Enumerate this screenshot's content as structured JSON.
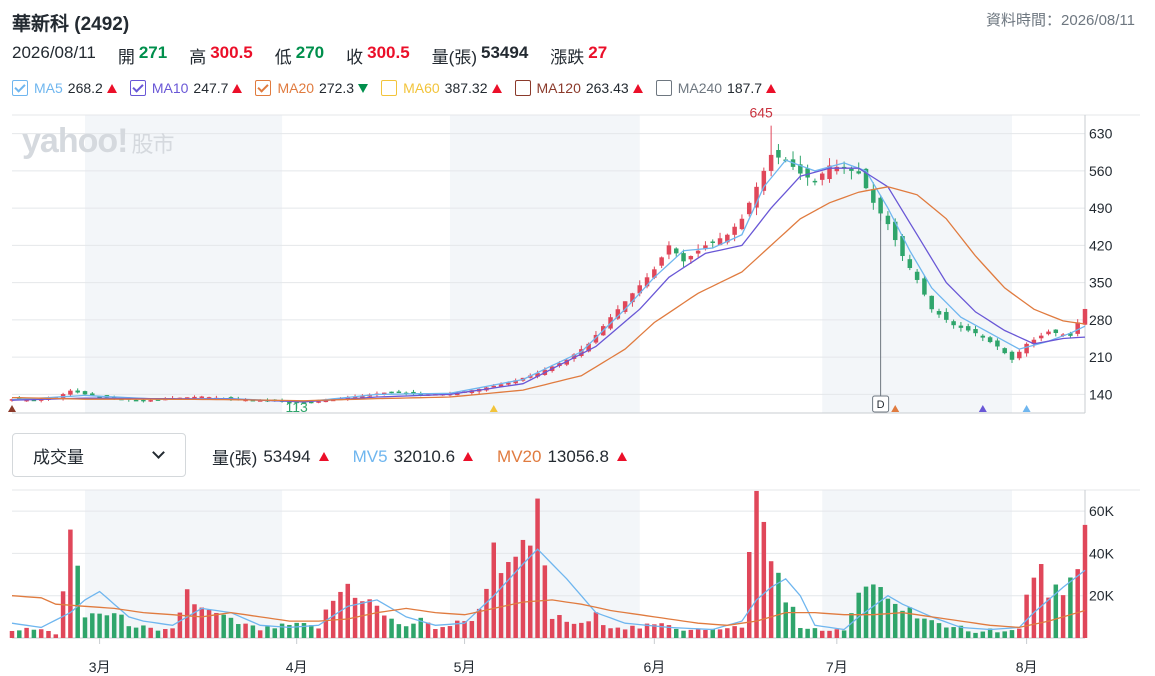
{
  "header": {
    "title": "華新科 (2492)",
    "data_time": "資料時間：2026/08/11"
  },
  "quote": {
    "date": "2026/08/11",
    "open_label": "開",
    "open": "271",
    "high_label": "高",
    "high": "300.5",
    "low_label": "低",
    "low": "270",
    "close_label": "收",
    "close": "300.5",
    "volume_label": "量(張)",
    "volume": "53494",
    "change_label": "漲跌",
    "change": "27"
  },
  "ma_legend": [
    {
      "name": "MA5",
      "value": "268.2",
      "dir": "up",
      "color": "#6fb6ef",
      "checked": true
    },
    {
      "name": "MA10",
      "value": "247.7",
      "dir": "up",
      "color": "#6957d6",
      "checked": true
    },
    {
      "name": "MA20",
      "value": "272.3",
      "dir": "down",
      "color": "#e07b3f",
      "checked": true
    },
    {
      "name": "MA60",
      "value": "387.32",
      "dir": "up",
      "color": "#f2c43b",
      "checked": false
    },
    {
      "name": "MA120",
      "value": "263.43",
      "dir": "up",
      "color": "#8b3a2b",
      "checked": false
    },
    {
      "name": "MA240",
      "value": "187.7",
      "dir": "up",
      "color": "#6e7780",
      "checked": false
    }
  ],
  "watermark": {
    "brand": "yahoo!",
    "sub": "股市"
  },
  "volume_panel": {
    "select_value": "成交量",
    "vol_label": "量(張)",
    "vol_value": "53494",
    "mv5_label": "MV5",
    "mv5_value": "32010.6",
    "mv20_label": "MV20",
    "mv20_value": "13056.8"
  },
  "colors": {
    "up": "#eb0f29",
    "down": "#008f4c",
    "candle_up": "#e0475a",
    "candle_down": "#2fa56b",
    "shade": "#f3f6f9"
  },
  "chart_data": {
    "type": "candlestick",
    "price_axis": {
      "ticks": [
        140,
        210,
        280,
        350,
        420,
        490,
        560,
        630
      ],
      "range": [
        105,
        665
      ]
    },
    "volume_axis": {
      "ticks": [
        20000,
        40000,
        60000
      ],
      "tick_labels": [
        "20K",
        "40K",
        "60K"
      ],
      "range": [
        0,
        70000
      ]
    },
    "month_labels": [
      "3月",
      "4月",
      "5月",
      "6月",
      "7月",
      "8月"
    ],
    "annotations": {
      "max_label": "645",
      "min_label": "113",
      "event_marker": "D"
    },
    "x_range": [
      0,
      147
    ],
    "month_day_index": [
      12,
      39,
      62,
      88,
      113,
      139
    ],
    "shaded_bands": [
      [
        10,
        37
      ],
      [
        60,
        86
      ],
      [
        111,
        137
      ]
    ],
    "key_points": {
      "high": {
        "i": 104,
        "v": 645
      },
      "low": {
        "i": 39,
        "v": 113
      },
      "event": {
        "i": 119
      }
    },
    "close_path": [
      [
        0,
        131
      ],
      [
        3,
        129
      ],
      [
        6,
        134
      ],
      [
        8,
        147
      ],
      [
        10,
        140
      ],
      [
        14,
        132
      ],
      [
        18,
        128
      ],
      [
        22,
        133
      ],
      [
        26,
        136
      ],
      [
        30,
        131
      ],
      [
        34,
        129
      ],
      [
        38,
        125
      ],
      [
        40,
        124
      ],
      [
        44,
        130
      ],
      [
        48,
        138
      ],
      [
        52,
        145
      ],
      [
        56,
        140
      ],
      [
        60,
        141
      ],
      [
        64,
        150
      ],
      [
        68,
        162
      ],
      [
        72,
        180
      ],
      [
        76,
        205
      ],
      [
        79,
        235
      ],
      [
        82,
        285
      ],
      [
        85,
        330
      ],
      [
        88,
        375
      ],
      [
        90,
        420
      ],
      [
        92,
        390
      ],
      [
        95,
        420
      ],
      [
        98,
        440
      ],
      [
        100,
        470
      ],
      [
        102,
        530
      ],
      [
        104,
        590
      ],
      [
        106,
        580
      ],
      [
        108,
        555
      ],
      [
        110,
        540
      ],
      [
        112,
        570
      ],
      [
        114,
        565
      ],
      [
        116,
        555
      ],
      [
        118,
        500
      ],
      [
        120,
        460
      ],
      [
        122,
        400
      ],
      [
        124,
        355
      ],
      [
        126,
        300
      ],
      [
        129,
        270
      ],
      [
        132,
        255
      ],
      [
        135,
        230
      ],
      [
        137,
        205
      ],
      [
        139,
        235
      ],
      [
        142,
        258
      ],
      [
        145,
        250
      ],
      [
        147,
        300.5
      ]
    ],
    "ma5_path": [
      [
        0,
        130
      ],
      [
        10,
        138
      ],
      [
        20,
        131
      ],
      [
        30,
        132
      ],
      [
        40,
        126
      ],
      [
        50,
        140
      ],
      [
        60,
        142
      ],
      [
        70,
        168
      ],
      [
        78,
        220
      ],
      [
        84,
        300
      ],
      [
        88,
        360
      ],
      [
        92,
        410
      ],
      [
        96,
        415
      ],
      [
        100,
        440
      ],
      [
        103,
        530
      ],
      [
        106,
        580
      ],
      [
        110,
        560
      ],
      [
        114,
        575
      ],
      [
        117,
        560
      ],
      [
        120,
        490
      ],
      [
        123,
        410
      ],
      [
        126,
        340
      ],
      [
        130,
        285
      ],
      [
        134,
        255
      ],
      [
        138,
        225
      ],
      [
        142,
        240
      ],
      [
        145,
        255
      ],
      [
        147,
        268.2
      ]
    ],
    "ma10_path": [
      [
        0,
        129
      ],
      [
        10,
        133
      ],
      [
        20,
        132
      ],
      [
        30,
        131
      ],
      [
        40,
        126
      ],
      [
        50,
        135
      ],
      [
        60,
        140
      ],
      [
        70,
        160
      ],
      [
        80,
        230
      ],
      [
        86,
        300
      ],
      [
        90,
        360
      ],
      [
        95,
        405
      ],
      [
        100,
        420
      ],
      [
        104,
        490
      ],
      [
        108,
        550
      ],
      [
        112,
        565
      ],
      [
        116,
        565
      ],
      [
        120,
        530
      ],
      [
        124,
        440
      ],
      [
        128,
        350
      ],
      [
        132,
        295
      ],
      [
        136,
        260
      ],
      [
        140,
        235
      ],
      [
        144,
        245
      ],
      [
        147,
        247.7
      ]
    ],
    "ma20_path": [
      [
        0,
        134
      ],
      [
        10,
        131
      ],
      [
        20,
        131
      ],
      [
        30,
        130
      ],
      [
        40,
        128
      ],
      [
        50,
        132
      ],
      [
        60,
        135
      ],
      [
        70,
        148
      ],
      [
        78,
        175
      ],
      [
        84,
        225
      ],
      [
        88,
        275
      ],
      [
        94,
        330
      ],
      [
        100,
        370
      ],
      [
        104,
        420
      ],
      [
        108,
        470
      ],
      [
        112,
        500
      ],
      [
        116,
        520
      ],
      [
        120,
        530
      ],
      [
        124,
        515
      ],
      [
        128,
        470
      ],
      [
        132,
        400
      ],
      [
        136,
        340
      ],
      [
        140,
        300
      ],
      [
        144,
        278
      ],
      [
        147,
        272.3
      ]
    ],
    "vol_path": [
      [
        0,
        4
      ],
      [
        4,
        4
      ],
      [
        6,
        2
      ],
      [
        8,
        46
      ],
      [
        10,
        10
      ],
      [
        12,
        12
      ],
      [
        14,
        11
      ],
      [
        16,
        7
      ],
      [
        18,
        5
      ],
      [
        20,
        3
      ],
      [
        22,
        4
      ],
      [
        24,
        22
      ],
      [
        26,
        13
      ],
      [
        28,
        11
      ],
      [
        30,
        8
      ],
      [
        32,
        6
      ],
      [
        34,
        4
      ],
      [
        36,
        5
      ],
      [
        38,
        6
      ],
      [
        40,
        6
      ],
      [
        42,
        5
      ],
      [
        44,
        18
      ],
      [
        46,
        25
      ],
      [
        48,
        20
      ],
      [
        50,
        14
      ],
      [
        52,
        8
      ],
      [
        54,
        6
      ],
      [
        56,
        8
      ],
      [
        58,
        5
      ],
      [
        60,
        6
      ],
      [
        62,
        8
      ],
      [
        64,
        12
      ],
      [
        66,
        45
      ],
      [
        68,
        30
      ],
      [
        70,
        38
      ],
      [
        72,
        55
      ],
      [
        74,
        10
      ],
      [
        76,
        8
      ],
      [
        78,
        6
      ],
      [
        80,
        10
      ],
      [
        82,
        6
      ],
      [
        84,
        5
      ],
      [
        86,
        5
      ],
      [
        88,
        6
      ],
      [
        90,
        6
      ],
      [
        92,
        4
      ],
      [
        94,
        5
      ],
      [
        96,
        4
      ],
      [
        98,
        4
      ],
      [
        100,
        6
      ],
      [
        102,
        67
      ],
      [
        104,
        37
      ],
      [
        106,
        22
      ],
      [
        108,
        4
      ],
      [
        110,
        5
      ],
      [
        112,
        3
      ],
      [
        114,
        4
      ],
      [
        116,
        18
      ],
      [
        118,
        25
      ],
      [
        120,
        20
      ],
      [
        122,
        14
      ],
      [
        124,
        12
      ],
      [
        126,
        8
      ],
      [
        128,
        4
      ],
      [
        130,
        5
      ],
      [
        132,
        3
      ],
      [
        134,
        4
      ],
      [
        136,
        3
      ],
      [
        138,
        4
      ],
      [
        140,
        33
      ],
      [
        142,
        25
      ],
      [
        144,
        18
      ],
      [
        146,
        28
      ],
      [
        147,
        53.5
      ]
    ],
    "mv5_path": [
      [
        0,
        7
      ],
      [
        4,
        5
      ],
      [
        8,
        12
      ],
      [
        10,
        18
      ],
      [
        12,
        22
      ],
      [
        14,
        16
      ],
      [
        16,
        10
      ],
      [
        18,
        8
      ],
      [
        22,
        6
      ],
      [
        26,
        14
      ],
      [
        30,
        12
      ],
      [
        34,
        6
      ],
      [
        38,
        5
      ],
      [
        42,
        6
      ],
      [
        46,
        15
      ],
      [
        50,
        18
      ],
      [
        54,
        10
      ],
      [
        58,
        6
      ],
      [
        62,
        7
      ],
      [
        66,
        20
      ],
      [
        70,
        35
      ],
      [
        72,
        42
      ],
      [
        76,
        28
      ],
      [
        80,
        12
      ],
      [
        84,
        7
      ],
      [
        90,
        5
      ],
      [
        96,
        4
      ],
      [
        100,
        8
      ],
      [
        102,
        18
      ],
      [
        104,
        24
      ],
      [
        106,
        28
      ],
      [
        108,
        20
      ],
      [
        110,
        6
      ],
      [
        114,
        4
      ],
      [
        116,
        10
      ],
      [
        118,
        15
      ],
      [
        120,
        20
      ],
      [
        122,
        16
      ],
      [
        126,
        10
      ],
      [
        130,
        5
      ],
      [
        134,
        4
      ],
      [
        138,
        5
      ],
      [
        140,
        12
      ],
      [
        142,
        18
      ],
      [
        144,
        24
      ],
      [
        147,
        32
      ]
    ],
    "mv20_path": [
      [
        0,
        20
      ],
      [
        4,
        19
      ],
      [
        6,
        16
      ],
      [
        10,
        15
      ],
      [
        14,
        14
      ],
      [
        18,
        12
      ],
      [
        22,
        11
      ],
      [
        26,
        10
      ],
      [
        30,
        12
      ],
      [
        34,
        10
      ],
      [
        38,
        8
      ],
      [
        42,
        8
      ],
      [
        46,
        9
      ],
      [
        50,
        12
      ],
      [
        54,
        14
      ],
      [
        58,
        12
      ],
      [
        62,
        11
      ],
      [
        66,
        14
      ],
      [
        70,
        17
      ],
      [
        74,
        18
      ],
      [
        78,
        16
      ],
      [
        82,
        13
      ],
      [
        86,
        11
      ],
      [
        90,
        9
      ],
      [
        94,
        7
      ],
      [
        98,
        6
      ],
      [
        102,
        8
      ],
      [
        106,
        12
      ],
      [
        110,
        12
      ],
      [
        114,
        11
      ],
      [
        118,
        11
      ],
      [
        122,
        12
      ],
      [
        126,
        10
      ],
      [
        130,
        8
      ],
      [
        134,
        6
      ],
      [
        138,
        5
      ],
      [
        142,
        8
      ],
      [
        147,
        13
      ]
    ]
  }
}
